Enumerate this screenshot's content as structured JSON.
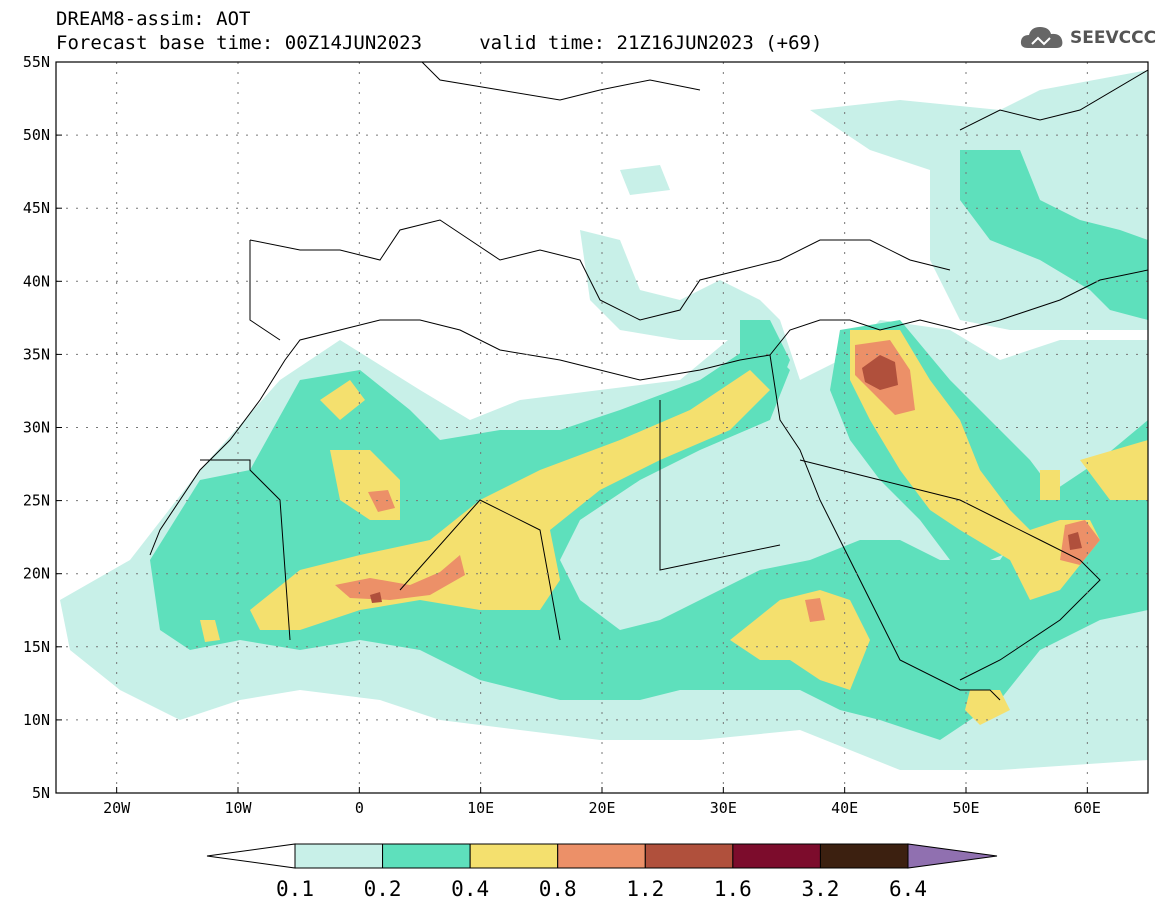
{
  "header": {
    "line1": "DREAM8-assim: AOT",
    "line2": "Forecast base time: 00Z14JUN2023     valid time: 21Z16JUN2023 (+69)",
    "logo_text": "SEEVCCC"
  },
  "map": {
    "lon_range": [
      -25,
      65
    ],
    "lat_range": [
      5,
      55
    ],
    "lat_ticks": [
      {
        "value": 55,
        "label": "55N"
      },
      {
        "value": 50,
        "label": "50N"
      },
      {
        "value": 45,
        "label": "45N"
      },
      {
        "value": 40,
        "label": "40N"
      },
      {
        "value": 35,
        "label": "35N"
      },
      {
        "value": 30,
        "label": "30N"
      },
      {
        "value": 25,
        "label": "25N"
      },
      {
        "value": 20,
        "label": "20N"
      },
      {
        "value": 15,
        "label": "15N"
      },
      {
        "value": 10,
        "label": "10N"
      },
      {
        "value": 5,
        "label": "5N"
      }
    ],
    "lon_ticks": [
      {
        "value": -20,
        "label": "20W"
      },
      {
        "value": -10,
        "label": "10W"
      },
      {
        "value": 0,
        "label": "0"
      },
      {
        "value": 10,
        "label": "10E"
      },
      {
        "value": 20,
        "label": "20E"
      },
      {
        "value": 30,
        "label": "30E"
      },
      {
        "value": 40,
        "label": "40E"
      },
      {
        "value": 50,
        "label": "50E"
      },
      {
        "value": 60,
        "label": "60E"
      }
    ],
    "grid": true
  },
  "colorbar": {
    "levels": [
      "0.1",
      "0.2",
      "0.4",
      "0.8",
      "1.2",
      "1.6",
      "3.2",
      "6.4"
    ],
    "colors": [
      "#ffffff",
      "#c8f0e8",
      "#5ee0bc",
      "#f4e06e",
      "#ec9068",
      "#b0503c",
      "#7c0c2c",
      "#3c2010",
      "#9070b0"
    ]
  }
}
